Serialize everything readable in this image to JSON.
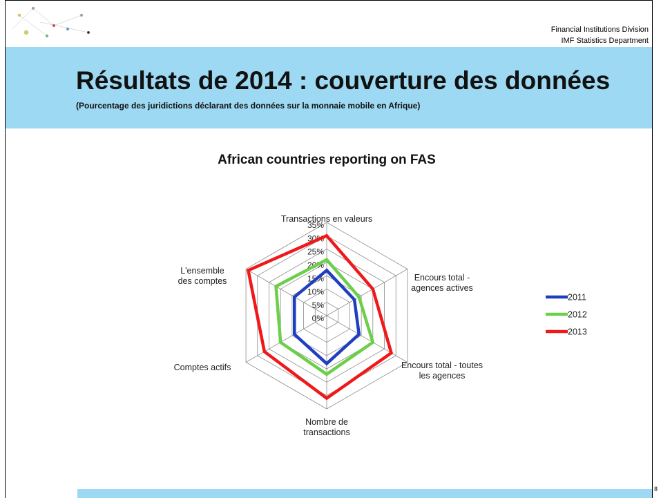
{
  "header": {
    "division": "Financial Institutions Division",
    "department": "IMF Statistics Department",
    "title": "Résultats de 2014 : couverture des données",
    "subtitle": "(Pourcentage des juridictions déclarant des données sur la monnaie mobile en Afrique)"
  },
  "page_number": "8",
  "chart_data": {
    "type": "radar",
    "title": "African countries reporting on FAS",
    "categories": [
      "Transactions en valeurs",
      "Encours total - agences actives",
      "Encours total - toutes les agences",
      "Nombre de transactions",
      "Comptes actifs",
      "L'ensemble des comptes"
    ],
    "series": [
      {
        "name": "2011",
        "color": "#1f3fbf",
        "values": [
          17,
          12,
          14,
          18,
          14,
          14
        ]
      },
      {
        "name": "2012",
        "color": "#6ccf4a",
        "values": [
          21,
          14,
          20,
          22,
          20,
          22
        ]
      },
      {
        "name": "2013",
        "color": "#f01818",
        "values": [
          30,
          20,
          28,
          31,
          27,
          34
        ]
      }
    ],
    "ylim": [
      0,
      35
    ],
    "yticks": [
      {
        "value": 0,
        "label": "0%"
      },
      {
        "value": 5,
        "label": "5%"
      },
      {
        "value": 10,
        "label": "10%"
      },
      {
        "value": 15,
        "label": "15%"
      },
      {
        "value": 20,
        "label": "20%"
      },
      {
        "value": 25,
        "label": "25%"
      },
      {
        "value": 30,
        "label": "30%"
      },
      {
        "value": 35,
        "label": "35%"
      }
    ],
    "grid": true,
    "legend": "right"
  }
}
